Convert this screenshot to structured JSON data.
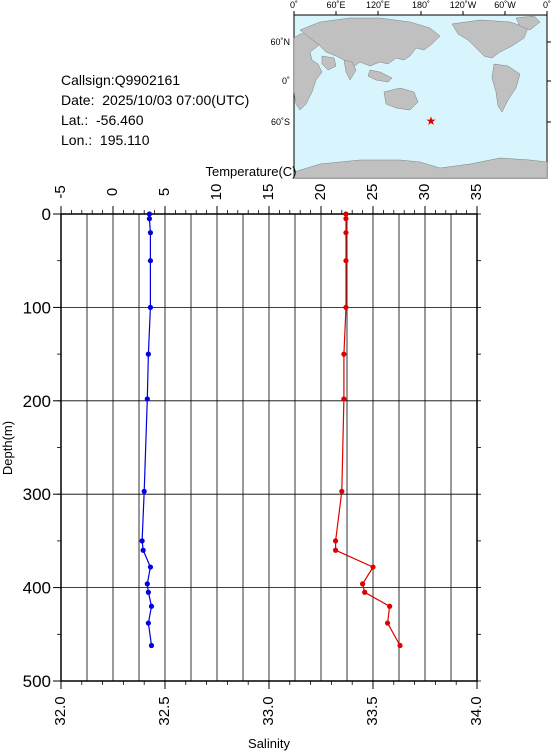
{
  "info": {
    "callsign": "Callsign:Q9902161",
    "date": "Date:  2025/10/03 07:00(UTC)",
    "lat": "Lat.:  -56.460",
    "lon": "Lon.:  195.110"
  },
  "map": {
    "top_labels": [
      "0˚",
      "60˚E",
      "120˚E",
      "180˚",
      "120˚W",
      "60˚W",
      "0˚"
    ],
    "lat_labels": [
      "60˚N",
      "0˚",
      "60˚S"
    ],
    "land_color": "#c0c0c0",
    "ocean_color": "#d8f4fc",
    "marker_color": "#e00000",
    "marker_icon": "star-icon"
  },
  "chart_data": {
    "type": "line",
    "ylabel": "Depth(m)",
    "ylim": [
      500,
      0
    ],
    "yticks": [
      0,
      100,
      200,
      300,
      400,
      500
    ],
    "temperature_axis": {
      "label": "Temperature(C)",
      "range": [
        -5,
        35
      ],
      "ticks": [
        -5,
        0,
        5,
        10,
        15,
        20,
        25,
        30,
        35
      ]
    },
    "salinity_axis": {
      "label": "Salinity",
      "range": [
        32.0,
        34.0
      ],
      "ticks": [
        "32.0",
        "32.5",
        "33.0",
        "33.5",
        "34.0"
      ]
    },
    "grid": true,
    "series": [
      {
        "axis": "temperature",
        "color": "#0000e0",
        "points": [
          {
            "depth": 0,
            "value": 3.5
          },
          {
            "depth": 5,
            "value": 3.5
          },
          {
            "depth": 20,
            "value": 3.6
          },
          {
            "depth": 50,
            "value": 3.6
          },
          {
            "depth": 100,
            "value": 3.6
          },
          {
            "depth": 150,
            "value": 3.4
          },
          {
            "depth": 198,
            "value": 3.3
          },
          {
            "depth": 297,
            "value": 3.0
          },
          {
            "depth": 350,
            "value": 2.8
          },
          {
            "depth": 360,
            "value": 2.9
          },
          {
            "depth": 378,
            "value": 3.6
          },
          {
            "depth": 396,
            "value": 3.3
          },
          {
            "depth": 405,
            "value": 3.4
          },
          {
            "depth": 420,
            "value": 3.7
          },
          {
            "depth": 438,
            "value": 3.4
          },
          {
            "depth": 462,
            "value": 3.7
          }
        ]
      },
      {
        "axis": "salinity",
        "color": "#e00000",
        "points": [
          {
            "depth": 0,
            "value": 33.37
          },
          {
            "depth": 5,
            "value": 33.37
          },
          {
            "depth": 20,
            "value": 33.37
          },
          {
            "depth": 50,
            "value": 33.37
          },
          {
            "depth": 100,
            "value": 33.37
          },
          {
            "depth": 150,
            "value": 33.36
          },
          {
            "depth": 198,
            "value": 33.36
          },
          {
            "depth": 297,
            "value": 33.35
          },
          {
            "depth": 350,
            "value": 33.32
          },
          {
            "depth": 360,
            "value": 33.32
          },
          {
            "depth": 378,
            "value": 33.5
          },
          {
            "depth": 396,
            "value": 33.45
          },
          {
            "depth": 405,
            "value": 33.46
          },
          {
            "depth": 420,
            "value": 33.58
          },
          {
            "depth": 438,
            "value": 33.57
          },
          {
            "depth": 462,
            "value": 33.63
          }
        ]
      }
    ]
  }
}
